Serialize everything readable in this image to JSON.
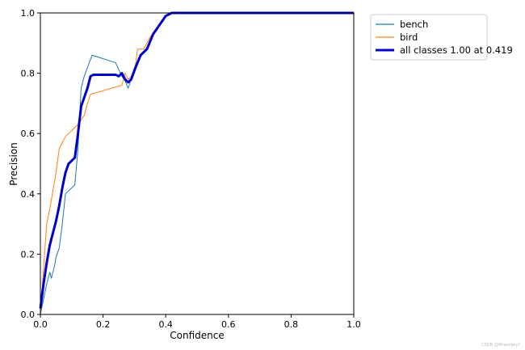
{
  "chart_data": {
    "type": "line",
    "title": "",
    "xlabel": "Confidence",
    "ylabel": "Precision",
    "xlim": [
      0,
      1
    ],
    "ylim": [
      0,
      1
    ],
    "x_ticks": [
      "0.0",
      "0.2",
      "0.4",
      "0.6",
      "0.8",
      "1.0"
    ],
    "y_ticks": [
      "0.0",
      "0.2",
      "0.4",
      "0.6",
      "0.8",
      "1.0"
    ],
    "grid": false,
    "legend_position": "outside-top-right",
    "series": [
      {
        "name": "bench",
        "color": "#1f77b4",
        "width": "thin",
        "points": [
          [
            0.0,
            0.0
          ],
          [
            0.01,
            0.05
          ],
          [
            0.02,
            0.1
          ],
          [
            0.03,
            0.14
          ],
          [
            0.035,
            0.12
          ],
          [
            0.045,
            0.16
          ],
          [
            0.05,
            0.19
          ],
          [
            0.06,
            0.22
          ],
          [
            0.07,
            0.3
          ],
          [
            0.08,
            0.4
          ],
          [
            0.1,
            0.42
          ],
          [
            0.11,
            0.43
          ],
          [
            0.12,
            0.55
          ],
          [
            0.125,
            0.65
          ],
          [
            0.13,
            0.75
          ],
          [
            0.14,
            0.79
          ],
          [
            0.165,
            0.86
          ],
          [
            0.24,
            0.835
          ],
          [
            0.26,
            0.79
          ],
          [
            0.27,
            0.775
          ],
          [
            0.28,
            0.75
          ],
          [
            0.29,
            0.78
          ],
          [
            0.3,
            0.8
          ],
          [
            0.32,
            0.86
          ],
          [
            0.34,
            0.88
          ],
          [
            0.36,
            0.93
          ],
          [
            0.38,
            0.96
          ],
          [
            0.4,
            0.99
          ],
          [
            0.42,
            1.0
          ],
          [
            1.0,
            1.0
          ]
        ]
      },
      {
        "name": "bird",
        "color": "#ff7f0e",
        "width": "thin",
        "points": [
          [
            0.0,
            0.0
          ],
          [
            0.01,
            0.15
          ],
          [
            0.02,
            0.3
          ],
          [
            0.03,
            0.35
          ],
          [
            0.04,
            0.41
          ],
          [
            0.05,
            0.47
          ],
          [
            0.06,
            0.55
          ],
          [
            0.07,
            0.57
          ],
          [
            0.08,
            0.59
          ],
          [
            0.1,
            0.61
          ],
          [
            0.12,
            0.63
          ],
          [
            0.14,
            0.66
          ],
          [
            0.15,
            0.7
          ],
          [
            0.16,
            0.73
          ],
          [
            0.26,
            0.76
          ],
          [
            0.27,
            0.8
          ],
          [
            0.28,
            0.78
          ],
          [
            0.3,
            0.8
          ],
          [
            0.31,
            0.88
          ],
          [
            0.33,
            0.88
          ],
          [
            0.35,
            0.92
          ],
          [
            0.38,
            0.96
          ],
          [
            0.4,
            0.99
          ],
          [
            0.42,
            1.0
          ],
          [
            1.0,
            1.0
          ]
        ]
      },
      {
        "name": "all classes 1.00 at 0.419",
        "color": "#0000cd",
        "width": "thick",
        "points": [
          [
            0.0,
            0.02
          ],
          [
            0.01,
            0.1
          ],
          [
            0.02,
            0.17
          ],
          [
            0.03,
            0.23
          ],
          [
            0.04,
            0.27
          ],
          [
            0.05,
            0.31
          ],
          [
            0.06,
            0.36
          ],
          [
            0.07,
            0.42
          ],
          [
            0.08,
            0.47
          ],
          [
            0.09,
            0.5
          ],
          [
            0.1,
            0.51
          ],
          [
            0.11,
            0.52
          ],
          [
            0.12,
            0.6
          ],
          [
            0.13,
            0.69
          ],
          [
            0.14,
            0.72
          ],
          [
            0.15,
            0.75
          ],
          [
            0.16,
            0.79
          ],
          [
            0.17,
            0.795
          ],
          [
            0.24,
            0.795
          ],
          [
            0.25,
            0.79
          ],
          [
            0.26,
            0.8
          ],
          [
            0.27,
            0.78
          ],
          [
            0.28,
            0.77
          ],
          [
            0.29,
            0.78
          ],
          [
            0.3,
            0.81
          ],
          [
            0.32,
            0.86
          ],
          [
            0.34,
            0.88
          ],
          [
            0.36,
            0.93
          ],
          [
            0.38,
            0.96
          ],
          [
            0.4,
            0.99
          ],
          [
            0.419,
            1.0
          ],
          [
            1.0,
            1.0
          ]
        ]
      }
    ]
  },
  "watermark": "CSDN @Mrworkey?"
}
